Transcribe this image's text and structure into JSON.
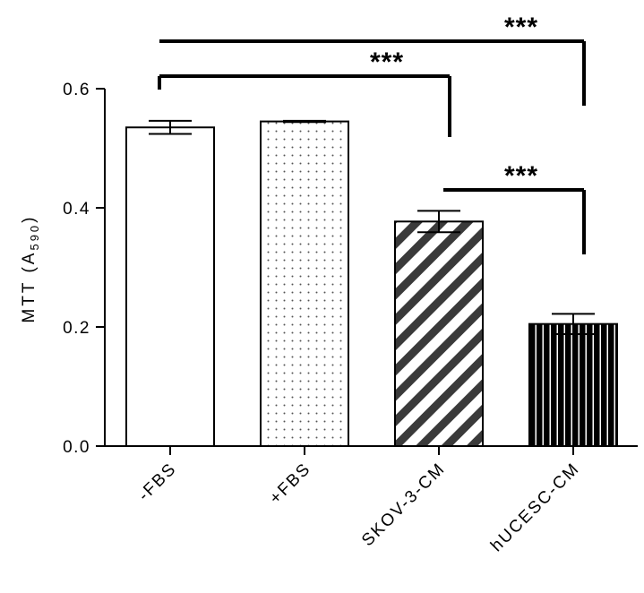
{
  "chart_data": {
    "type": "bar",
    "categories": [
      "-FBS",
      "+FBS",
      "SKOV-3-CM",
      "hUCESC-CM"
    ],
    "values": [
      0.535,
      0.545,
      0.377,
      0.205
    ],
    "errors": [
      0.011,
      0.001,
      0.018,
      0.017
    ],
    "fills": [
      "white",
      "dots",
      "diagonal-stripes",
      "vertical-stripes"
    ],
    "ylabel": "MTT (A",
    "ylabel_subscript": "590",
    "ylabel_close": ")",
    "ylim": [
      0,
      0.6
    ],
    "yticks": [
      0.0,
      0.2,
      0.4,
      0.6
    ],
    "ytick_labels": [
      "0.0",
      "0.2",
      "0.4",
      "0.6"
    ],
    "grid": false,
    "significance": [
      {
        "from": "-FBS",
        "to": "hUCESC-CM",
        "label": "***"
      },
      {
        "from": "-FBS",
        "to": "SKOV-3-CM",
        "label": "***"
      },
      {
        "from": "SKOV-3-CM",
        "to": "hUCESC-CM",
        "label": "***"
      }
    ]
  }
}
